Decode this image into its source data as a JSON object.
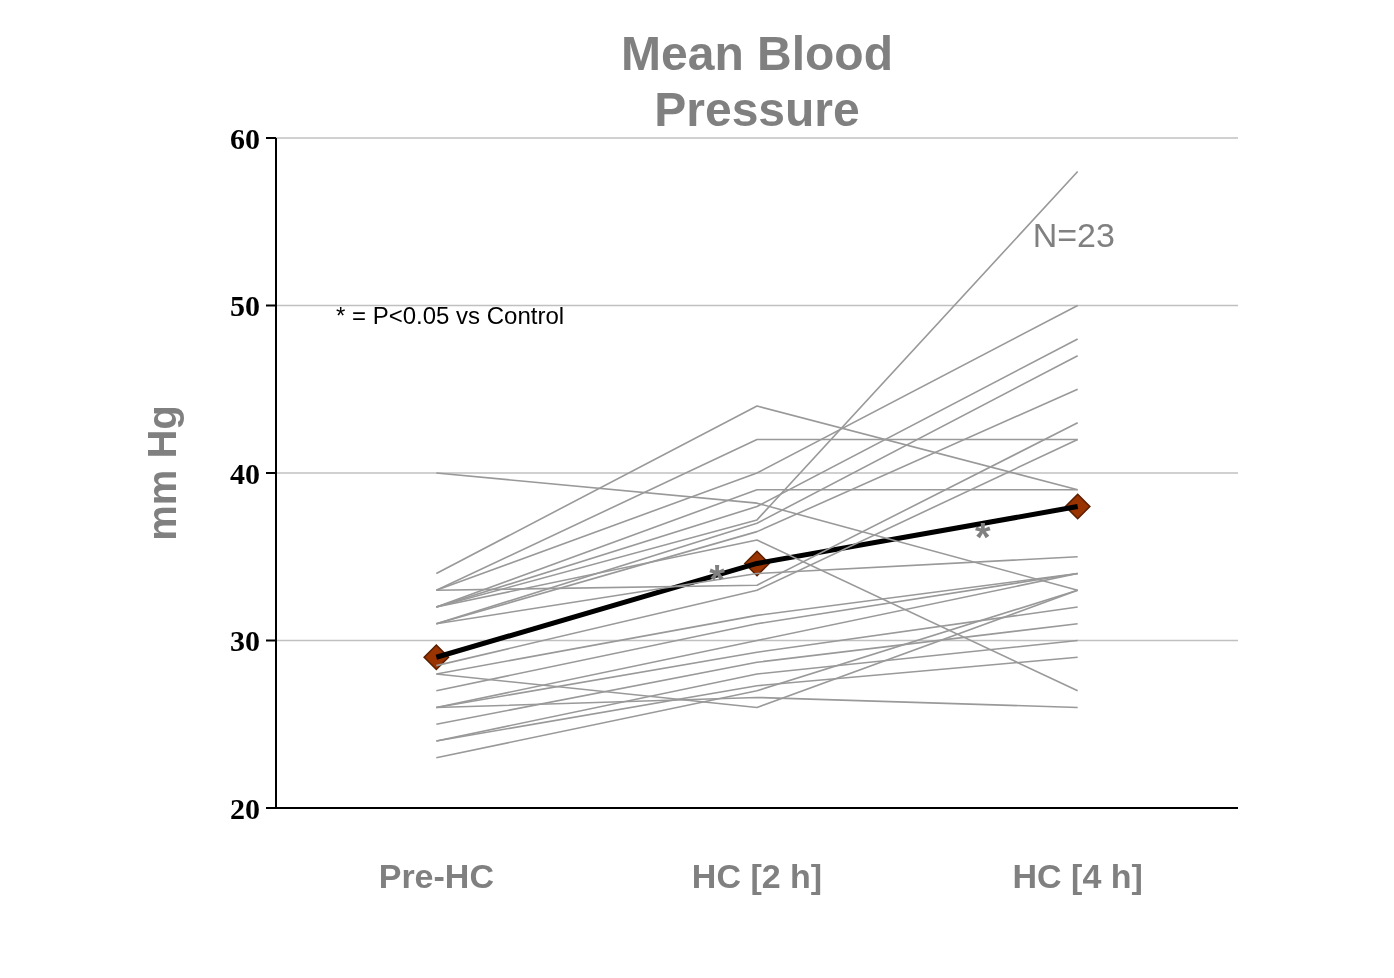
{
  "chart_data": {
    "type": "line",
    "title": "Mean Blood Pressure",
    "ylabel": "mm Hg",
    "categories": [
      "Pre-HC",
      "HC [2 h]",
      "HC [4 h]"
    ],
    "ylim": [
      20,
      60
    ],
    "yticks": [
      20,
      30,
      40,
      50,
      60
    ],
    "grid": "y",
    "annotations": [
      "* = P<0.05 vs Control",
      "N=23",
      {
        "text": "*",
        "x": "HC [2 h]",
        "y": 34.5
      },
      "*"
    ],
    "series": [
      {
        "color": "#999999",
        "marker": "none",
        "values": [
          40,
          38.2,
          33
        ]
      },
      {
        "color": "#999999",
        "marker": "none",
        "values": [
          34,
          44,
          39
        ]
      },
      {
        "color": "#999999",
        "marker": "none",
        "values": [
          33,
          42,
          42
        ]
      },
      {
        "color": "#999999",
        "marker": "none",
        "values": [
          33,
          40,
          50
        ]
      },
      {
        "color": "#999999",
        "marker": "none",
        "values": [
          32,
          39,
          39
        ]
      },
      {
        "color": "#999999",
        "marker": "none",
        "values": [
          32,
          37.2,
          58
        ]
      },
      {
        "color": "#999999",
        "marker": "none",
        "values": [
          32,
          38,
          48
        ]
      },
      {
        "color": "#999999",
        "marker": "none",
        "values": [
          31,
          37,
          47
        ]
      },
      {
        "color": "#999999",
        "marker": "none",
        "values": [
          31,
          36.5,
          45
        ]
      },
      {
        "color": "#999999",
        "marker": "none",
        "values": [
          33,
          33.3,
          43
        ]
      },
      {
        "color": "#999999",
        "marker": "none",
        "values": [
          32,
          36,
          27
        ]
      },
      {
        "color": "#999999",
        "marker": "none",
        "values": [
          31,
          34,
          35
        ]
      },
      {
        "color": "#999999",
        "marker": "none",
        "values": [
          28.5,
          33,
          42
        ]
      },
      {
        "color": "#999999",
        "marker": "none",
        "values": [
          28,
          31.5,
          34
        ]
      },
      {
        "color": "#999999",
        "marker": "none",
        "values": [
          27,
          31,
          34
        ]
      },
      {
        "color": "#999999",
        "marker": "none",
        "values": [
          26,
          30,
          34
        ]
      },
      {
        "color": "#999999",
        "marker": "none",
        "values": [
          26,
          29.3,
          32
        ]
      },
      {
        "color": "#999999",
        "marker": "none",
        "values": [
          25,
          28.7,
          31
        ]
      },
      {
        "color": "#999999",
        "marker": "none",
        "values": [
          24,
          28,
          30
        ]
      },
      {
        "color": "#999999",
        "marker": "none",
        "values": [
          24,
          27.3,
          29
        ]
      },
      {
        "color": "#999999",
        "marker": "none",
        "values": [
          23,
          27,
          33
        ]
      },
      {
        "color": "#999999",
        "marker": "none",
        "values": [
          26,
          26.6,
          26
        ]
      },
      {
        "color": "#999999",
        "marker": "none",
        "values": [
          28,
          26,
          33
        ]
      },
      {
        "color": "#000000",
        "marker": "diamond",
        "colors": [
          "#993300",
          "#993300",
          "#993300"
        ],
        "values": [
          29,
          34.6,
          38
        ]
      }
    ]
  }
}
